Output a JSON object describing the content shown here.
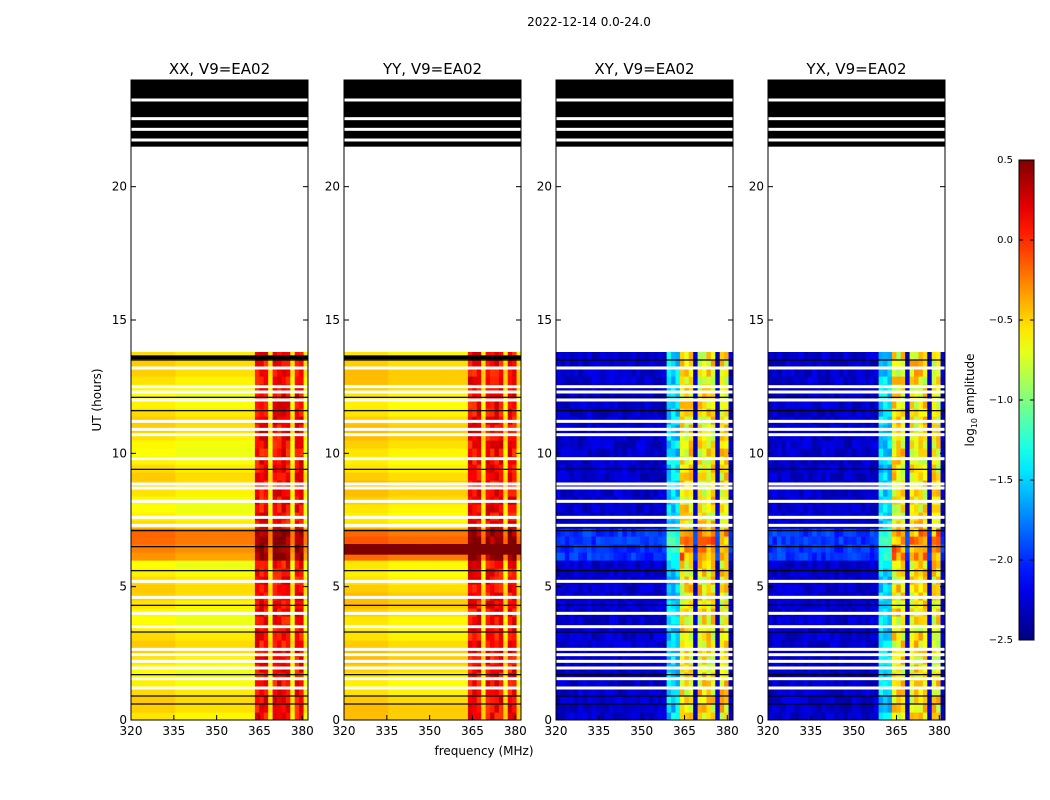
{
  "figure": {
    "suptitle": "2022-12-14 0.0-24.0",
    "xlabel": "frequency (MHz)",
    "ylabel": "UT (hours)"
  },
  "chart_data": {
    "type": "heatmap",
    "title": "2022-12-14 0.0-24.0",
    "xlabel": "frequency (MHz)",
    "ylabel": "UT (hours)",
    "xlim": [
      320,
      382
    ],
    "ylim": [
      0,
      24
    ],
    "xticks": [
      320,
      335,
      350,
      365,
      380
    ],
    "yticks": [
      0,
      5,
      10,
      15,
      20
    ],
    "panels": [
      {
        "title": "XX, V9=EA02",
        "kind": "auto",
        "base_level": -0.6,
        "rfi_level": 0.3
      },
      {
        "title": "YY, V9=EA02",
        "kind": "auto",
        "base_level": -0.55,
        "rfi_level": 0.3
      },
      {
        "title": "XY, V9=EA02",
        "kind": "cross",
        "base_level": -2.4,
        "rfi_level": -0.6
      },
      {
        "title": "YX, V9=EA02",
        "kind": "cross",
        "base_level": -2.4,
        "rfi_level": -0.6
      }
    ],
    "data_span_hours": [
      0,
      13.8
    ],
    "blank_span_hours": [
      13.8,
      21.3
    ],
    "flagged_rows_hours": [
      21.6,
      21.9,
      22.2,
      22.5,
      22.8,
      23.1,
      23.4,
      23.7,
      24.0
    ],
    "rfi_bands_mhz": [
      [
        364,
        368
      ],
      [
        369,
        372
      ],
      [
        373,
        376
      ],
      [
        377,
        380
      ]
    ],
    "colorbar": {
      "label": "log10 amplitude",
      "label_main": "log",
      "label_sub": "10",
      "label_rest": " amplitude",
      "vmin": -2.5,
      "vmax": 0.5,
      "ticks": [
        0.5,
        0.0,
        -0.5,
        -1.0,
        -1.5,
        -2.0,
        -2.5
      ],
      "tick_labels": [
        "0.5",
        "0.0",
        "−0.5",
        "−1.0",
        "−1.5",
        "−2.0",
        "−2.5"
      ],
      "colormap": "jet"
    }
  }
}
